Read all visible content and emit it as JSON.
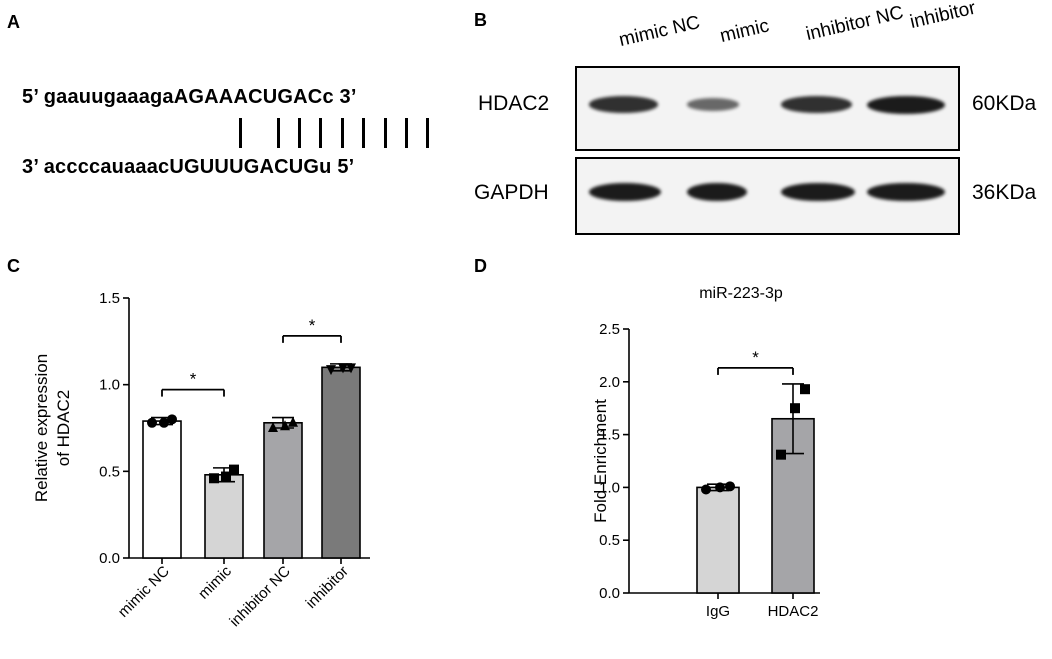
{
  "panels": {
    "a": "A",
    "b": "B",
    "c": "C",
    "d": "D"
  },
  "panel_a": {
    "top_prefix": "5’ gaauugaaaga",
    "top_seed": "AGAAACUGAC",
    "top_suffix": "c 3’",
    "bottom_prefix": "3’ accccauaaac",
    "bottom_seed": "UGUUUGACUG",
    "bottom_suffix": "u 5’",
    "pairs": 8
  },
  "panel_b": {
    "lanes": [
      "mimic NC",
      "mimic",
      "inhibitor NC",
      "inhibitor"
    ],
    "blots": [
      {
        "protein": "HDAC2",
        "size": "60KDa",
        "band_intensity": [
          0.85,
          0.45,
          0.85,
          1.0
        ]
      },
      {
        "protein": "GAPDH",
        "size": "36KDa",
        "band_intensity": [
          1.0,
          1.0,
          1.0,
          1.0
        ]
      }
    ]
  },
  "chart_data": [
    {
      "type": "bar",
      "title": "",
      "xlabel": "",
      "ylabel": "Relative expression of HDAC2",
      "ylabel_lines": [
        "Relative expression",
        "of HDAC2"
      ],
      "categories": [
        "mimic NC",
        "mimic",
        "inhibitor NC",
        "inhibitor"
      ],
      "values": [
        0.79,
        0.48,
        0.78,
        1.1
      ],
      "errors": [
        0.02,
        0.04,
        0.03,
        0.02
      ],
      "points": [
        [
          0.78,
          0.78,
          0.8
        ],
        [
          0.46,
          0.47,
          0.51
        ],
        [
          0.75,
          0.76,
          0.78
        ],
        [
          1.09,
          1.1,
          1.1
        ]
      ],
      "marker": [
        "circle",
        "square",
        "triangle",
        "triangle-down"
      ],
      "colors": [
        "#ffffff",
        "#d5d5d5",
        "#a5a5a8",
        "#7a7a7a"
      ],
      "ylim": [
        0,
        1.5
      ],
      "yticks": [
        "0.0",
        "0.5",
        "1.0",
        "1.5"
      ],
      "significance": [
        {
          "from": 0,
          "to": 1,
          "label": "*"
        },
        {
          "from": 2,
          "to": 3,
          "label": "*"
        }
      ]
    },
    {
      "type": "bar",
      "title": "miR-223-3p",
      "xlabel": "",
      "ylabel": "Fold Enrichment",
      "ylabel_lines": [
        "Fold Enrichment"
      ],
      "categories": [
        "IgG",
        "HDAC2"
      ],
      "values": [
        1.0,
        1.65
      ],
      "errors": [
        0.03,
        0.33
      ],
      "points": [
        [
          0.98,
          1.0,
          1.01
        ],
        [
          1.31,
          1.75,
          1.93
        ]
      ],
      "marker": [
        "circle",
        "square"
      ],
      "colors": [
        "#d5d5d5",
        "#a5a5a8"
      ],
      "ylim": [
        0,
        2.5
      ],
      "yticks": [
        "0.0",
        "0.5",
        "1.0",
        "1.5",
        "2.0",
        "2.5"
      ],
      "significance": [
        {
          "from": 0,
          "to": 1,
          "label": "*"
        }
      ]
    }
  ]
}
